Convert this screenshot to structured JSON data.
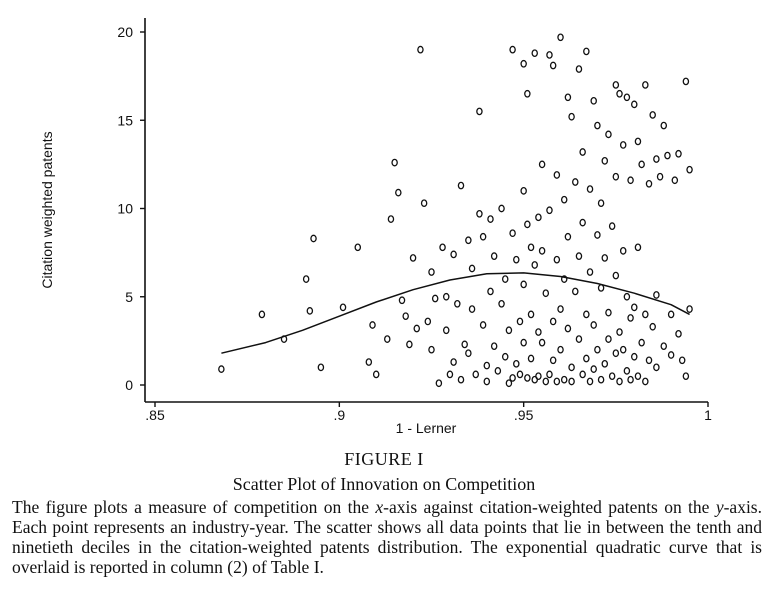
{
  "chart_data": {
    "type": "scatter",
    "title": "",
    "xlabel": "1 - Lerner",
    "ylabel": "Citation weighted patents",
    "xlim": [
      0.85,
      1.0
    ],
    "ylim": [
      0,
      20
    ],
    "x_ticks": [
      ".85",
      ".9",
      ".95",
      "1"
    ],
    "x_tick_values": [
      0.85,
      0.9,
      0.95,
      1.0
    ],
    "y_ticks": [
      "0",
      "5",
      "10",
      "15",
      "20"
    ],
    "y_tick_values": [
      0,
      5,
      10,
      15,
      20
    ],
    "grid": false,
    "marker": "hollow-diamond",
    "color": "#111111",
    "points": [
      [
        0.868,
        0.9
      ],
      [
        0.879,
        4.0
      ],
      [
        0.885,
        2.6
      ],
      [
        0.891,
        6.0
      ],
      [
        0.892,
        4.2
      ],
      [
        0.893,
        8.3
      ],
      [
        0.895,
        1.0
      ],
      [
        0.901,
        4.4
      ],
      [
        0.905,
        7.8
      ],
      [
        0.908,
        1.3
      ],
      [
        0.909,
        3.4
      ],
      [
        0.91,
        0.6
      ],
      [
        0.913,
        2.6
      ],
      [
        0.914,
        9.4
      ],
      [
        0.915,
        12.6
      ],
      [
        0.916,
        10.9
      ],
      [
        0.917,
        4.8
      ],
      [
        0.918,
        3.9
      ],
      [
        0.919,
        2.3
      ],
      [
        0.92,
        7.2
      ],
      [
        0.921,
        3.2
      ],
      [
        0.922,
        19.0
      ],
      [
        0.923,
        10.3
      ],
      [
        0.924,
        3.6
      ],
      [
        0.925,
        6.4
      ],
      [
        0.925,
        2.0
      ],
      [
        0.926,
        4.9
      ],
      [
        0.927,
        0.1
      ],
      [
        0.928,
        7.8
      ],
      [
        0.929,
        5.0
      ],
      [
        0.929,
        3.1
      ],
      [
        0.93,
        0.6
      ],
      [
        0.931,
        7.4
      ],
      [
        0.931,
        1.3
      ],
      [
        0.932,
        4.6
      ],
      [
        0.933,
        11.3
      ],
      [
        0.933,
        0.3
      ],
      [
        0.934,
        2.3
      ],
      [
        0.935,
        8.2
      ],
      [
        0.935,
        1.8
      ],
      [
        0.936,
        6.6
      ],
      [
        0.936,
        4.3
      ],
      [
        0.937,
        0.6
      ],
      [
        0.938,
        15.5
      ],
      [
        0.938,
        9.7
      ],
      [
        0.939,
        8.4
      ],
      [
        0.939,
        3.4
      ],
      [
        0.94,
        1.1
      ],
      [
        0.94,
        0.2
      ],
      [
        0.941,
        9.4
      ],
      [
        0.941,
        5.3
      ],
      [
        0.942,
        7.3
      ],
      [
        0.942,
        2.2
      ],
      [
        0.943,
        0.8
      ],
      [
        0.944,
        10.0
      ],
      [
        0.944,
        4.6
      ],
      [
        0.945,
        6.0
      ],
      [
        0.945,
        1.6
      ],
      [
        0.946,
        0.1
      ],
      [
        0.946,
        3.1
      ],
      [
        0.947,
        19.0
      ],
      [
        0.947,
        8.6
      ],
      [
        0.947,
        0.4
      ],
      [
        0.948,
        7.1
      ],
      [
        0.948,
        1.2
      ],
      [
        0.949,
        3.6
      ],
      [
        0.949,
        0.6
      ],
      [
        0.95,
        18.2
      ],
      [
        0.95,
        11.0
      ],
      [
        0.95,
        5.7
      ],
      [
        0.95,
        2.4
      ],
      [
        0.951,
        16.5
      ],
      [
        0.951,
        0.4
      ],
      [
        0.951,
        9.1
      ],
      [
        0.952,
        7.8
      ],
      [
        0.952,
        4.0
      ],
      [
        0.952,
        1.5
      ],
      [
        0.953,
        18.8
      ],
      [
        0.953,
        0.3
      ],
      [
        0.953,
        6.8
      ],
      [
        0.954,
        9.5
      ],
      [
        0.954,
        3.0
      ],
      [
        0.954,
        0.5
      ],
      [
        0.955,
        12.5
      ],
      [
        0.955,
        7.6
      ],
      [
        0.955,
        2.4
      ],
      [
        0.956,
        0.2
      ],
      [
        0.956,
        5.2
      ],
      [
        0.957,
        18.7
      ],
      [
        0.957,
        9.9
      ],
      [
        0.957,
        0.6
      ],
      [
        0.958,
        18.1
      ],
      [
        0.958,
        3.6
      ],
      [
        0.958,
        1.4
      ],
      [
        0.959,
        11.9
      ],
      [
        0.959,
        7.1
      ],
      [
        0.959,
        0.2
      ],
      [
        0.96,
        19.7
      ],
      [
        0.96,
        4.3
      ],
      [
        0.96,
        2.0
      ],
      [
        0.961,
        10.5
      ],
      [
        0.961,
        6.0
      ],
      [
        0.961,
        0.3
      ],
      [
        0.962,
        16.3
      ],
      [
        0.962,
        8.4
      ],
      [
        0.962,
        3.2
      ],
      [
        0.963,
        15.2
      ],
      [
        0.963,
        1.0
      ],
      [
        0.963,
        0.2
      ],
      [
        0.964,
        11.5
      ],
      [
        0.964,
        5.3
      ],
      [
        0.965,
        17.9
      ],
      [
        0.965,
        7.3
      ],
      [
        0.965,
        2.6
      ],
      [
        0.966,
        13.2
      ],
      [
        0.966,
        9.2
      ],
      [
        0.966,
        0.6
      ],
      [
        0.967,
        18.9
      ],
      [
        0.967,
        4.0
      ],
      [
        0.967,
        1.5
      ],
      [
        0.968,
        11.1
      ],
      [
        0.968,
        6.4
      ],
      [
        0.968,
        0.2
      ],
      [
        0.969,
        16.1
      ],
      [
        0.969,
        3.4
      ],
      [
        0.969,
        0.9
      ],
      [
        0.97,
        14.7
      ],
      [
        0.97,
        8.5
      ],
      [
        0.97,
        2.0
      ],
      [
        0.971,
        10.3
      ],
      [
        0.971,
        5.5
      ],
      [
        0.971,
        0.3
      ],
      [
        0.972,
        12.7
      ],
      [
        0.972,
        7.2
      ],
      [
        0.972,
        1.2
      ],
      [
        0.973,
        14.2
      ],
      [
        0.973,
        4.1
      ],
      [
        0.973,
        2.6
      ],
      [
        0.974,
        9.0
      ],
      [
        0.974,
        0.5
      ],
      [
        0.975,
        17.0
      ],
      [
        0.975,
        11.8
      ],
      [
        0.975,
        6.2
      ],
      [
        0.975,
        1.8
      ],
      [
        0.976,
        16.5
      ],
      [
        0.976,
        3.0
      ],
      [
        0.976,
        0.2
      ],
      [
        0.977,
        13.6
      ],
      [
        0.977,
        7.6
      ],
      [
        0.977,
        2.0
      ],
      [
        0.978,
        16.3
      ],
      [
        0.978,
        5.0
      ],
      [
        0.978,
        0.8
      ],
      [
        0.979,
        11.6
      ],
      [
        0.979,
        3.8
      ],
      [
        0.979,
        0.3
      ],
      [
        0.98,
        15.9
      ],
      [
        0.98,
        4.4
      ],
      [
        0.98,
        1.6
      ],
      [
        0.981,
        13.8
      ],
      [
        0.981,
        7.8
      ],
      [
        0.981,
        0.5
      ],
      [
        0.982,
        12.5
      ],
      [
        0.982,
        2.4
      ],
      [
        0.983,
        17.0
      ],
      [
        0.983,
        4.0
      ],
      [
        0.983,
        0.2
      ],
      [
        0.984,
        11.4
      ],
      [
        0.984,
        1.4
      ],
      [
        0.985,
        15.3
      ],
      [
        0.985,
        3.3
      ],
      [
        0.986,
        12.8
      ],
      [
        0.986,
        5.1
      ],
      [
        0.986,
        1.0
      ],
      [
        0.987,
        11.8
      ],
      [
        0.988,
        14.7
      ],
      [
        0.988,
        2.2
      ],
      [
        0.989,
        13.0
      ],
      [
        0.99,
        4.0
      ],
      [
        0.99,
        1.7
      ],
      [
        0.991,
        11.6
      ],
      [
        0.992,
        13.1
      ],
      [
        0.992,
        2.9
      ],
      [
        0.993,
        1.4
      ],
      [
        0.994,
        17.2
      ],
      [
        0.994,
        0.5
      ],
      [
        0.995,
        12.2
      ],
      [
        0.995,
        4.3
      ]
    ],
    "fit_curve": {
      "type": "exponential quadratic",
      "x": [
        0.868,
        0.88,
        0.89,
        0.9,
        0.91,
        0.92,
        0.93,
        0.94,
        0.95,
        0.96,
        0.97,
        0.98,
        0.99,
        0.995
      ],
      "y": [
        1.8,
        2.4,
        3.1,
        3.9,
        4.7,
        5.4,
        5.95,
        6.3,
        6.35,
        6.15,
        5.75,
        5.2,
        4.55,
        4.0
      ]
    }
  },
  "caption": {
    "figure_label": "FIGURE I",
    "title": "Scatter Plot of Innovation on Competition",
    "body_parts": [
      "The figure plots a measure of competition on the ",
      "x",
      "-axis against citation-weighted patents on the ",
      "y",
      "-axis. Each point represents an industry-year. The scatter shows all data points that lie in between the tenth and ninetieth deciles in the citation-weighted patents distribution. The exponential quadratic curve that is overlaid is reported in column (2) of Table I."
    ]
  }
}
